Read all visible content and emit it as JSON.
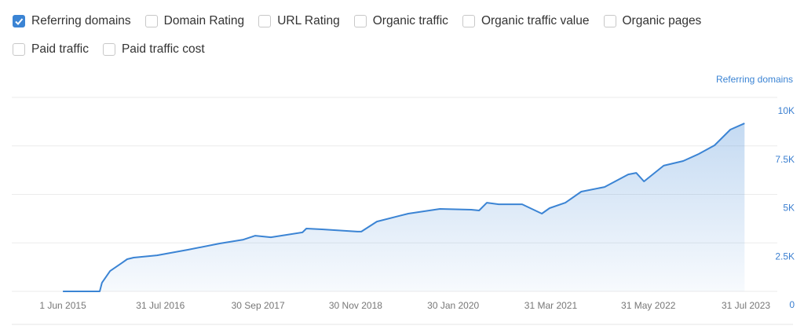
{
  "chart_data": {
    "type": "area",
    "toggles": [
      {
        "label": "Referring domains",
        "checked": true
      },
      {
        "label": "Domain Rating",
        "checked": false
      },
      {
        "label": "URL Rating",
        "checked": false
      },
      {
        "label": "Organic traffic",
        "checked": false
      },
      {
        "label": "Organic traffic value",
        "checked": false
      },
      {
        "label": "Organic pages",
        "checked": false
      },
      {
        "label": "Paid traffic",
        "checked": false
      },
      {
        "label": "Paid traffic cost",
        "checked": false
      }
    ],
    "x": [
      "2015-06-01",
      "2015-09-19",
      "2015-11-09",
      "2015-11-19",
      "2015-12-24",
      "2016-02-13",
      "2016-03-08",
      "2016-04-05",
      "2016-07-16",
      "2016-11-30",
      "2017-04-16",
      "2017-07-28",
      "2017-09-18",
      "2017-11-25",
      "2018-04-12",
      "2018-04-29",
      "2018-07-06",
      "2018-12-08",
      "2018-12-25",
      "2019-03-03",
      "2019-07-18",
      "2019-12-03",
      "2020-04-18",
      "2020-05-22",
      "2020-06-25",
      "2020-08-16",
      "2020-11-26",
      "2021-02-20",
      "2021-03-26",
      "2021-06-03",
      "2021-08-11",
      "2021-11-21",
      "2022-03-04",
      "2022-04-08",
      "2022-05-12",
      "2022-08-06",
      "2022-10-30",
      "2023-01-07",
      "2023-03-16",
      "2023-05-24",
      "2023-07-25"
    ],
    "series": [
      {
        "name": "Referring domains",
        "color": "#3b84d4",
        "values": [
          0,
          0,
          0,
          450,
          1050,
          1460,
          1660,
          1740,
          1860,
          2150,
          2470,
          2670,
          2870,
          2790,
          3040,
          3240,
          3200,
          3080,
          3080,
          3600,
          4010,
          4250,
          4210,
          4170,
          4570,
          4490,
          4490,
          4010,
          4290,
          4570,
          5140,
          5380,
          6030,
          6110,
          5670,
          6480,
          6720,
          7090,
          7530,
          8340,
          8660
        ]
      }
    ],
    "xlim": [
      "2014-10-21",
      "2023-12-15"
    ],
    "xticks": [
      {
        "value": "2015-06-01",
        "label": "1 Jun 2015"
      },
      {
        "value": "2016-07-31",
        "label": "31 Jul 2016"
      },
      {
        "value": "2017-09-30",
        "label": "30 Sep 2017"
      },
      {
        "value": "2018-11-30",
        "label": "30 Nov 2018"
      },
      {
        "value": "2020-01-30",
        "label": "30 Jan 2020"
      },
      {
        "value": "2021-03-31",
        "label": "31 Mar 2021"
      },
      {
        "value": "2022-05-31",
        "label": "31 May 2022"
      },
      {
        "value": "2023-07-31",
        "label": "31 Jul 2023"
      }
    ],
    "ylim": [
      0,
      10000
    ],
    "yticks": [
      0,
      {
        "value": 2500,
        "label": "2.5K"
      },
      {
        "value": 5000,
        "label": "5K"
      },
      {
        "value": 7500,
        "label": "7.5K"
      },
      {
        "value": 10000,
        "label": "10K"
      }
    ],
    "grid": true
  }
}
